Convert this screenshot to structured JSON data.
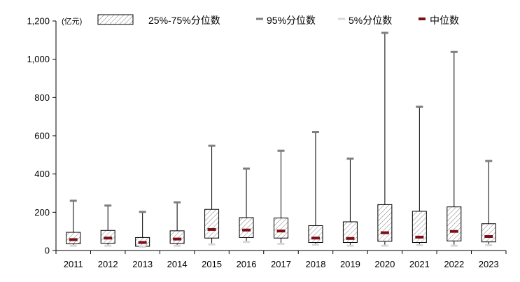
{
  "chart_data": {
    "type": "boxplot",
    "unit_label": "(亿元)",
    "categories": [
      "2011",
      "2012",
      "2013",
      "2014",
      "2015",
      "2016",
      "2017",
      "2018",
      "2019",
      "2020",
      "2021",
      "2022",
      "2023"
    ],
    "ylim": [
      0,
      1200
    ],
    "yticks": [
      0,
      200,
      400,
      600,
      800,
      1000,
      1200
    ],
    "ytick_labels": [
      "0",
      "200",
      "400",
      "600",
      "800",
      "1,000",
      "1,200"
    ],
    "series": [
      {
        "name": "25%-75%分位数",
        "q1": [
          35,
          38,
          22,
          37,
          65,
          68,
          65,
          42,
          42,
          48,
          42,
          50,
          45
        ],
        "q3": [
          95,
          105,
          68,
          103,
          215,
          172,
          170,
          130,
          150,
          240,
          205,
          228,
          140
        ]
      },
      {
        "name": "95%分位数",
        "values": [
          260,
          235,
          202,
          252,
          548,
          428,
          522,
          620,
          480,
          1138,
          752,
          1038,
          468
        ]
      },
      {
        "name": "5%分位数",
        "values": [
          25,
          25,
          20,
          25,
          32,
          45,
          35,
          30,
          25,
          25,
          28,
          25,
          28
        ]
      },
      {
        "name": "中位数",
        "values": [
          57,
          65,
          42,
          60,
          110,
          107,
          102,
          65,
          63,
          93,
          70,
          100,
          73
        ]
      }
    ],
    "colors": {
      "box_stroke": "#000000",
      "hatch": "#808080",
      "p95": "#7f7f7f",
      "p5": "#d9d9d9",
      "median": "#7b0e16",
      "axis": "#000000"
    },
    "grid": false,
    "legend_position": "top"
  }
}
